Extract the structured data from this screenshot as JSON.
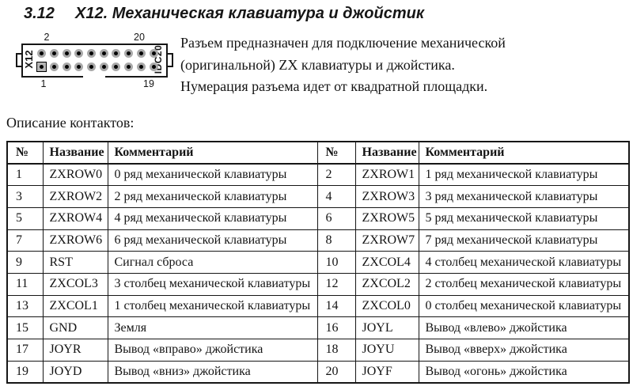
{
  "colors": {
    "ink": "#161616",
    "pin_fill": "#a9a9a9"
  },
  "heading": {
    "number": "3.12",
    "title": "Х12. Механическая клавиатура и джойстик"
  },
  "connector": {
    "name_label": "X12",
    "type_label": "IDC20",
    "pins_per_row": 10,
    "pin_top_first": "2",
    "pin_top_last": "20",
    "pin_bottom_first": "1",
    "pin_bottom_last": "19"
  },
  "intro": {
    "lines": [
      "Разъем предназначен для подключение механической",
      "(оригинальной) ZX клавиатуры и джойстика.",
      "Нумерация разъема идет от квадратной площадки."
    ]
  },
  "section_label": "Описание контактов:",
  "pin_table": {
    "headers": [
      "№",
      "Название",
      "Комментарий",
      "№",
      "Название",
      "Комментарий"
    ],
    "rows": [
      [
        "1",
        "ZXROW0",
        "0 ряд механической клавиатуры",
        "2",
        "ZXROW1",
        "1 ряд механической клавиатуры"
      ],
      [
        "3",
        "ZXROW2",
        "2 ряд механической клавиатуры",
        "4",
        "ZXROW3",
        "3 ряд механической клавиатуры"
      ],
      [
        "5",
        "ZXROW4",
        "4 ряд механической клавиатуры",
        "6",
        "ZXROW5",
        "5 ряд механической клавиатуры"
      ],
      [
        "7",
        "ZXROW6",
        "6 ряд механической клавиатуры",
        "8",
        "ZXROW7",
        "7 ряд механической клавиатуры"
      ],
      [
        "9",
        "RST",
        "Сигнал сброса",
        "10",
        "ZXCOL4",
        "4 столбец механической клавиатуры"
      ],
      [
        "11",
        "ZXCOL3",
        "3 столбец механической клавиатуры",
        "12",
        "ZXCOL2",
        "2 столбец механической клавиатуры"
      ],
      [
        "13",
        "ZXCOL1",
        "1 столбец механической клавиатуры",
        "14",
        "ZXCOL0",
        "0 столбец механической клавиатуры"
      ],
      [
        "15",
        "GND",
        "Земля",
        "16",
        "JOYL",
        "Вывод «влево» джойстика"
      ],
      [
        "17",
        "JOYR",
        "Вывод «вправо» джойстика",
        "18",
        "JOYU",
        "Вывод «вверх» джойстика"
      ],
      [
        "19",
        "JOYD",
        "Вывод «вниз» джойстика",
        "20",
        "JOYF",
        "Вывод «огонь» джойстика"
      ]
    ]
  }
}
